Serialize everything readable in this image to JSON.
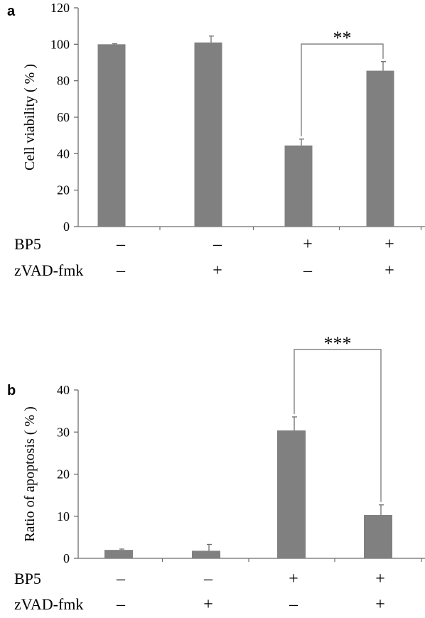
{
  "colors": {
    "bar": "#808080",
    "axis": "#6e6e6e",
    "text": "#000000"
  },
  "chart_data": [
    {
      "type": "bar",
      "panel": "a",
      "ylabel": "Cell viability ( % )",
      "ylim": [
        0,
        120
      ],
      "yticks": [
        0,
        20,
        40,
        60,
        80,
        100,
        120
      ],
      "grid": false,
      "categories": [
        "1",
        "2",
        "3",
        "4"
      ],
      "values": [
        100,
        101,
        44.5,
        85.5
      ],
      "errors": [
        0.3,
        3.5,
        3.5,
        5
      ],
      "conditions": [
        {
          "label": "BP5",
          "signs": [
            "–",
            "–",
            "+",
            "+"
          ]
        },
        {
          "label": "zVAD-fmk",
          "signs": [
            "–",
            "+",
            "–",
            "+"
          ]
        }
      ],
      "significance": {
        "from": 2,
        "to": 3,
        "label": "**"
      }
    },
    {
      "type": "bar",
      "panel": "b",
      "ylabel": "Ratio of apoptosis ( % )",
      "ylim": [
        0,
        40
      ],
      "yticks": [
        0,
        10,
        20,
        30,
        40
      ],
      "grid": false,
      "categories": [
        "1",
        "2",
        "3",
        "4"
      ],
      "values": [
        2,
        1.8,
        30.4,
        10.3
      ],
      "errors": [
        0.2,
        1.5,
        3.2,
        2.4
      ],
      "conditions": [
        {
          "label": "BP5",
          "signs": [
            "–",
            "–",
            "+",
            "+"
          ]
        },
        {
          "label": "zVAD-fmk",
          "signs": [
            "–",
            "+",
            "–",
            "+"
          ]
        }
      ],
      "significance": {
        "from": 2,
        "to": 3,
        "label": "***"
      }
    }
  ]
}
